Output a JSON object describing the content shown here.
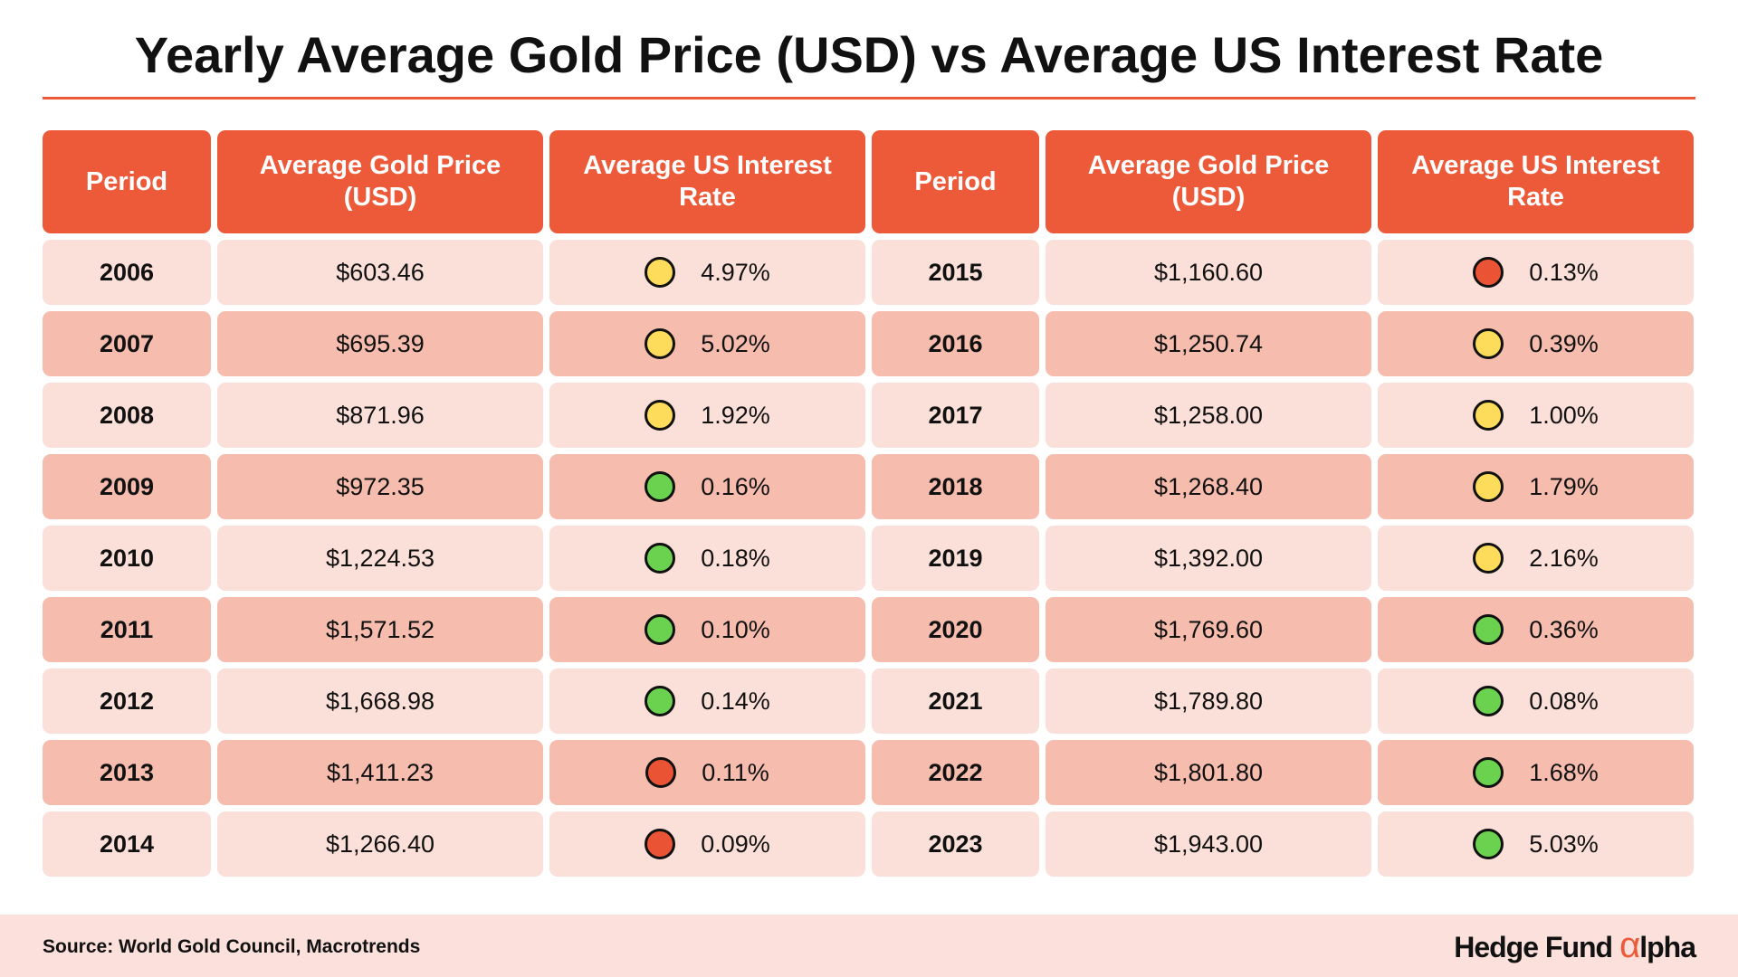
{
  "title": "Yearly Average Gold Price (USD) vs Average US Interest Rate",
  "tables": [
    {
      "headers": [
        "Period",
        "Average Gold Price (USD)",
        "Average US Interest Rate"
      ],
      "rows": [
        {
          "period": "2006",
          "price": "$603.46",
          "rate": "4.97%",
          "indicator": "yellow"
        },
        {
          "period": "2007",
          "price": "$695.39",
          "rate": "5.02%",
          "indicator": "yellow"
        },
        {
          "period": "2008",
          "price": "$871.96",
          "rate": "1.92%",
          "indicator": "yellow"
        },
        {
          "period": "2009",
          "price": "$972.35",
          "rate": "0.16%",
          "indicator": "green"
        },
        {
          "period": "2010",
          "price": "$1,224.53",
          "rate": "0.18%",
          "indicator": "green"
        },
        {
          "period": "2011",
          "price": "$1,571.52",
          "rate": "0.10%",
          "indicator": "green"
        },
        {
          "period": "2012",
          "price": "$1,668.98",
          "rate": "0.14%",
          "indicator": "green"
        },
        {
          "period": "2013",
          "price": "$1,411.23",
          "rate": "0.11%",
          "indicator": "red"
        },
        {
          "period": "2014",
          "price": "$1,266.40",
          "rate": "0.09%",
          "indicator": "red"
        }
      ]
    },
    {
      "headers": [
        "Period",
        "Average Gold Price (USD)",
        "Average US Interest Rate"
      ],
      "rows": [
        {
          "period": "2015",
          "price": "$1,160.60",
          "rate": "0.13%",
          "indicator": "red"
        },
        {
          "period": "2016",
          "price": "$1,250.74",
          "rate": "0.39%",
          "indicator": "yellow"
        },
        {
          "period": "2017",
          "price": "$1,258.00",
          "rate": "1.00%",
          "indicator": "yellow"
        },
        {
          "period": "2018",
          "price": "$1,268.40",
          "rate": "1.79%",
          "indicator": "yellow"
        },
        {
          "period": "2019",
          "price": "$1,392.00",
          "rate": "2.16%",
          "indicator": "yellow"
        },
        {
          "period": "2020",
          "price": "$1,769.60",
          "rate": "0.36%",
          "indicator": "green"
        },
        {
          "period": "2021",
          "price": "$1,789.80",
          "rate": "0.08%",
          "indicator": "green"
        },
        {
          "period": "2022",
          "price": "$1,801.80",
          "rate": "1.68%",
          "indicator": "green"
        },
        {
          "period": "2023",
          "price": "$1,943.00",
          "rate": "5.03%",
          "indicator": "green"
        }
      ]
    }
  ],
  "footer": {
    "source": "Source: World Gold Council, Macrotrends",
    "brand": [
      "Hedge Fund",
      "α",
      "lpha"
    ]
  }
}
